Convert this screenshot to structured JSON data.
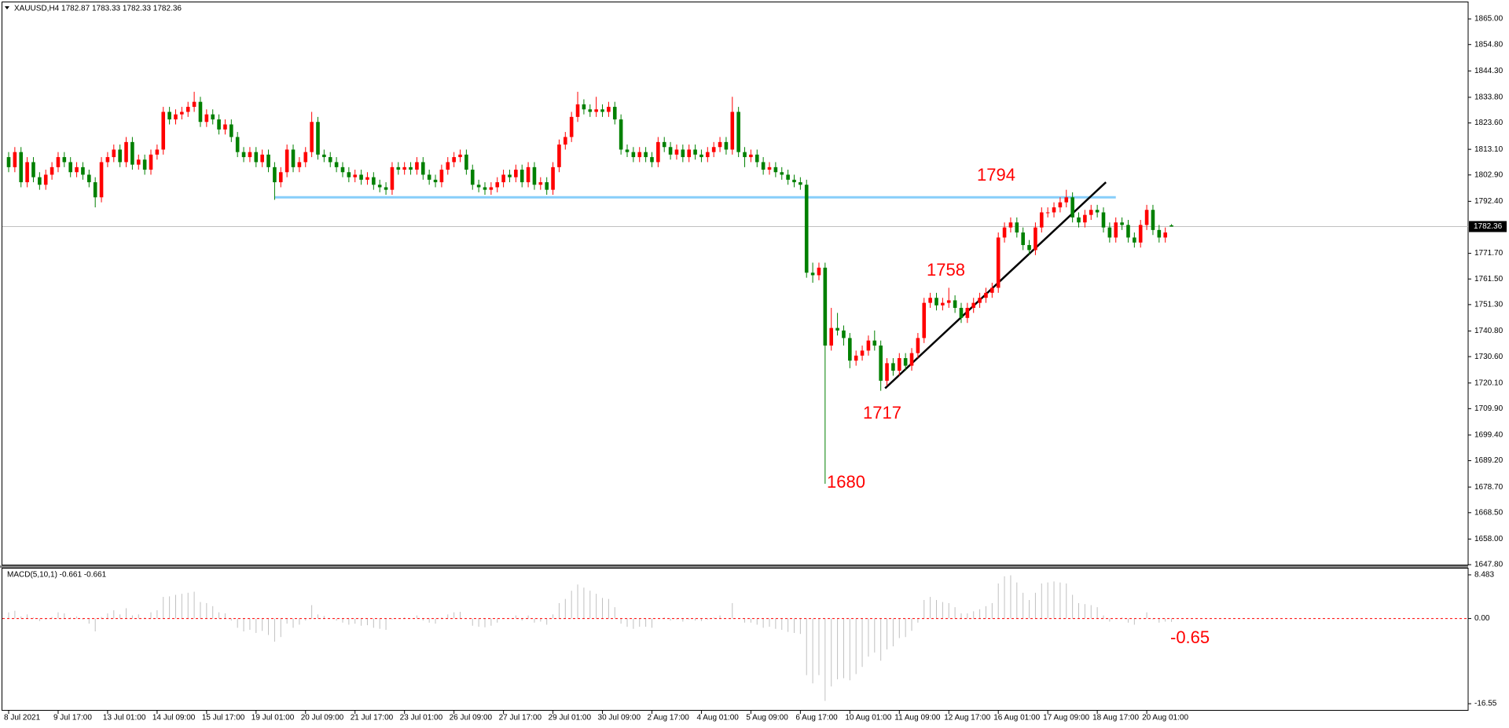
{
  "chart_data": [
    {
      "type": "candlestick",
      "title": "XAUUSD,H4 1782.87 1783.33 1782.33 1782.36",
      "categories": [
        "8 Jul 2021",
        null,
        null,
        null,
        null,
        null,
        null,
        null,
        "9 Jul 17:00",
        null,
        null,
        null,
        null,
        null,
        null,
        null,
        "13 Jul 01:00",
        null,
        null,
        null,
        null,
        null,
        null,
        null,
        "14 Jul 09:00",
        null,
        null,
        null,
        null,
        null,
        null,
        null,
        "15 Jul 17:00",
        null,
        null,
        null,
        null,
        null,
        null,
        null,
        "19 Jul 01:00",
        null,
        null,
        null,
        null,
        null,
        null,
        null,
        "20 Jul 09:00",
        null,
        null,
        null,
        null,
        null,
        null,
        null,
        "21 Jul 17:00",
        null,
        null,
        null,
        null,
        null,
        null,
        null,
        "23 Jul 01:00",
        null,
        null,
        null,
        null,
        null,
        null,
        null,
        "26 Jul 09:00",
        null,
        null,
        null,
        null,
        null,
        null,
        null,
        "27 Jul 17:00",
        null,
        null,
        null,
        null,
        null,
        null,
        null,
        "29 Jul 01:00",
        null,
        null,
        null,
        null,
        null,
        null,
        null,
        "30 Jul 09:00",
        null,
        null,
        null,
        null,
        null,
        null,
        null,
        "2 Aug 17:00",
        null,
        null,
        null,
        null,
        null,
        null,
        null,
        "4 Aug 01:00",
        null,
        null,
        null,
        null,
        null,
        null,
        null,
        "5 Aug 09:00",
        null,
        null,
        null,
        null,
        null,
        null,
        null,
        "6 Aug 17:00",
        null,
        null,
        null,
        null,
        null,
        null,
        null,
        "10 Aug 01:00",
        null,
        null,
        null,
        null,
        null,
        null,
        null,
        "11 Aug 09:00",
        null,
        null,
        null,
        null,
        null,
        null,
        null,
        "12 Aug 17:00",
        null,
        null,
        null,
        null,
        null,
        null,
        null,
        "16 Aug 01:00",
        null,
        null,
        null,
        null,
        null,
        null,
        null,
        "17 Aug 09:00",
        null,
        null,
        null,
        null,
        null,
        null,
        null,
        "18 Aug 17:00",
        null,
        null,
        null,
        null,
        null,
        null,
        null,
        "20 Aug 01:00",
        null,
        null,
        null,
        null
      ],
      "open": [
        1810,
        1806,
        1812,
        1800,
        1808,
        1802,
        1799,
        1803,
        1806,
        1810,
        1808,
        1804,
        1806,
        1803,
        1800,
        1794,
        1808,
        1810,
        1813,
        1808,
        1816,
        1807,
        1809,
        1805,
        1811,
        1813,
        1828,
        1825,
        1827,
        1828,
        1830,
        1832,
        1824,
        1827,
        1825,
        1821,
        1823,
        1818,
        1812,
        1810,
        1812,
        1808,
        1811,
        1806,
        1800,
        1804,
        1813,
        1806,
        1808,
        1812,
        1824,
        1811,
        1810,
        1808,
        1806,
        1804,
        1802,
        1803,
        1801,
        1802,
        1799,
        1798,
        1797,
        1806,
        1805,
        1806,
        1805,
        1808,
        1803,
        1801,
        1800,
        1805,
        1808,
        1810,
        1811,
        1805,
        1799,
        1798,
        1797,
        1798,
        1800,
        1803,
        1802,
        1805,
        1800,
        1806,
        1799,
        1800,
        1797,
        1806,
        1815,
        1818,
        1826,
        1831,
        1829,
        1828,
        1829,
        1828,
        1830,
        1825,
        1813,
        1812,
        1810,
        1812,
        1810,
        1808,
        1816,
        1814,
        1811,
        1813,
        1810,
        1813,
        1811,
        1810,
        1812,
        1814,
        1816,
        1813,
        1828,
        1812,
        1810,
        1811,
        1808,
        1805,
        1806,
        1804,
        1803,
        1801,
        1800,
        1799,
        1764,
        1763,
        1766,
        1735,
        1742,
        1741,
        1738,
        1729,
        1731,
        1733,
        1737,
        1735,
        1721,
        1728,
        1725,
        1730,
        1727,
        1732,
        1738,
        1752,
        1754,
        1751,
        1752,
        1753,
        1750,
        1746,
        1750,
        1752,
        1754,
        1756,
        1758,
        1778,
        1782,
        1784,
        1780,
        1775,
        1773,
        1782,
        1788,
        1788,
        1790,
        1792,
        1794,
        1786,
        1784,
        1787,
        1789,
        1788,
        1782,
        1778,
        1784,
        1783,
        1778,
        1776,
        1783,
        1789,
        1781,
        1778,
        1782.87
      ],
      "high": [
        1812,
        1814,
        1814,
        1810,
        1810,
        1804,
        1805,
        1808,
        1812,
        1812,
        1810,
        1808,
        1808,
        1805,
        1802,
        1810,
        1812,
        1815,
        1815,
        1818,
        1818,
        1811,
        1811,
        1813,
        1815,
        1830,
        1830,
        1829,
        1830,
        1832,
        1836,
        1834,
        1829,
        1829,
        1827,
        1825,
        1825,
        1820,
        1814,
        1814,
        1814,
        1813,
        1813,
        1808,
        1806,
        1815,
        1815,
        1810,
        1814,
        1828,
        1826,
        1813,
        1812,
        1810,
        1808,
        1806,
        1805,
        1805,
        1804,
        1804,
        1801,
        1800,
        1808,
        1808,
        1808,
        1808,
        1810,
        1810,
        1805,
        1803,
        1807,
        1810,
        1812,
        1813,
        1813,
        1807,
        1801,
        1800,
        1800,
        1802,
        1805,
        1805,
        1807,
        1807,
        1808,
        1808,
        1802,
        1802,
        1808,
        1817,
        1820,
        1828,
        1836,
        1833,
        1831,
        1834,
        1831,
        1832,
        1832,
        1827,
        1815,
        1814,
        1814,
        1814,
        1812,
        1818,
        1818,
        1816,
        1815,
        1815,
        1815,
        1815,
        1813,
        1814,
        1816,
        1818,
        1818,
        1834,
        1830,
        1814,
        1813,
        1813,
        1810,
        1808,
        1808,
        1806,
        1805,
        1803,
        1802,
        1801,
        1768,
        1768,
        1768,
        1750,
        1748,
        1743,
        1740,
        1733,
        1735,
        1739,
        1741,
        1737,
        1730,
        1730,
        1732,
        1732,
        1734,
        1740,
        1754,
        1756,
        1756,
        1754,
        1758,
        1755,
        1752,
        1752,
        1754,
        1756,
        1758,
        1760,
        1780,
        1784,
        1786,
        1786,
        1782,
        1777,
        1784,
        1790,
        1790,
        1792,
        1794,
        1797,
        1796,
        1788,
        1789,
        1791,
        1791,
        1790,
        1784,
        1786,
        1786,
        1785,
        1780,
        1785,
        1791,
        1791,
        1783,
        1782,
        1783.33
      ],
      "low": [
        1804,
        1804,
        1798,
        1798,
        1800,
        1797,
        1797,
        1801,
        1804,
        1806,
        1802,
        1802,
        1801,
        1798,
        1790,
        1792,
        1806,
        1808,
        1806,
        1806,
        1805,
        1805,
        1803,
        1803,
        1809,
        1811,
        1823,
        1823,
        1825,
        1826,
        1828,
        1822,
        1822,
        1823,
        1819,
        1819,
        1816,
        1810,
        1808,
        1808,
        1806,
        1806,
        1804,
        1793,
        1798,
        1802,
        1804,
        1804,
        1806,
        1810,
        1809,
        1808,
        1806,
        1804,
        1802,
        1800,
        1800,
        1799,
        1799,
        1797,
        1796,
        1795,
        1795,
        1803,
        1803,
        1803,
        1803,
        1801,
        1799,
        1798,
        1798,
        1803,
        1806,
        1808,
        1803,
        1797,
        1796,
        1795,
        1795,
        1796,
        1798,
        1800,
        1800,
        1798,
        1798,
        1797,
        1797,
        1795,
        1795,
        1804,
        1813,
        1816,
        1824,
        1827,
        1826,
        1826,
        1826,
        1826,
        1823,
        1811,
        1810,
        1808,
        1808,
        1808,
        1806,
        1806,
        1812,
        1809,
        1809,
        1808,
        1808,
        1809,
        1808,
        1808,
        1810,
        1812,
        1811,
        1811,
        1810,
        1806,
        1808,
        1806,
        1803,
        1803,
        1802,
        1801,
        1799,
        1798,
        1797,
        1762,
        1760,
        1761,
        1680,
        1733,
        1739,
        1735,
        1726,
        1727,
        1729,
        1731,
        1733,
        1717,
        1719,
        1723,
        1723,
        1725,
        1725,
        1730,
        1736,
        1750,
        1749,
        1749,
        1750,
        1748,
        1744,
        1744,
        1748,
        1750,
        1752,
        1754,
        1756,
        1776,
        1780,
        1778,
        1773,
        1771,
        1771,
        1780,
        1786,
        1786,
        1788,
        1790,
        1784,
        1782,
        1782,
        1785,
        1786,
        1780,
        1776,
        1776,
        1781,
        1776,
        1774,
        1774,
        1781,
        1779,
        1776,
        1776,
        1782.33
      ],
      "close": [
        1806,
        1812,
        1800,
        1808,
        1802,
        1799,
        1803,
        1806,
        1810,
        1808,
        1804,
        1806,
        1803,
        1800,
        1794,
        1808,
        1810,
        1813,
        1808,
        1816,
        1807,
        1809,
        1805,
        1811,
        1813,
        1828,
        1825,
        1827,
        1828,
        1830,
        1832,
        1824,
        1827,
        1825,
        1821,
        1823,
        1818,
        1812,
        1810,
        1812,
        1808,
        1811,
        1806,
        1800,
        1804,
        1813,
        1806,
        1808,
        1812,
        1824,
        1811,
        1810,
        1808,
        1806,
        1804,
        1802,
        1803,
        1801,
        1802,
        1799,
        1798,
        1797,
        1806,
        1805,
        1806,
        1805,
        1808,
        1803,
        1801,
        1800,
        1805,
        1808,
        1810,
        1811,
        1805,
        1799,
        1798,
        1797,
        1798,
        1800,
        1803,
        1802,
        1805,
        1800,
        1806,
        1799,
        1800,
        1797,
        1806,
        1815,
        1818,
        1826,
        1831,
        1829,
        1828,
        1829,
        1828,
        1830,
        1825,
        1813,
        1812,
        1810,
        1812,
        1810,
        1808,
        1816,
        1814,
        1811,
        1813,
        1810,
        1813,
        1811,
        1810,
        1812,
        1814,
        1816,
        1813,
        1828,
        1812,
        1810,
        1811,
        1808,
        1805,
        1806,
        1804,
        1803,
        1801,
        1800,
        1799,
        1764,
        1763,
        1766,
        1735,
        1742,
        1741,
        1738,
        1729,
        1731,
        1733,
        1737,
        1735,
        1721,
        1728,
        1725,
        1730,
        1727,
        1732,
        1738,
        1752,
        1754,
        1751,
        1752,
        1753,
        1750,
        1746,
        1750,
        1752,
        1754,
        1756,
        1758,
        1778,
        1782,
        1784,
        1780,
        1775,
        1773,
        1782,
        1788,
        1788,
        1790,
        1792,
        1794,
        1786,
        1784,
        1787,
        1789,
        1788,
        1782,
        1778,
        1784,
        1783,
        1778,
        1776,
        1783,
        1789,
        1781,
        1778,
        1780,
        1782.36
      ],
      "up_color": "#ff0000",
      "down_color": "#008000",
      "ylim": [
        1647.5,
        1871.9
      ],
      "yticks": [
        {
          "value": 1865,
          "label": "1865.00"
        },
        {
          "value": 1854.8,
          "label": "1854.80"
        },
        {
          "value": 1844.3,
          "label": "1844.30"
        },
        {
          "value": 1833.8,
          "label": "1833.80"
        },
        {
          "value": 1823.6,
          "label": "1823.60"
        },
        {
          "value": 1813.1,
          "label": "1813.10"
        },
        {
          "value": 1802.9,
          "label": "1802.90"
        },
        {
          "value": 1792.4,
          "label": "1792.40"
        },
        {
          "value": 1771.7,
          "label": "1771.70"
        },
        {
          "value": 1761.5,
          "label": "1761.50"
        },
        {
          "value": 1751.3,
          "label": "1751.30"
        },
        {
          "value": 1740.8,
          "label": "1740.80"
        },
        {
          "value": 1730.6,
          "label": "1730.60"
        },
        {
          "value": 1720.1,
          "label": "1720.10"
        },
        {
          "value": 1709.9,
          "label": "1709.90"
        },
        {
          "value": 1699.4,
          "label": "1699.40"
        },
        {
          "value": 1689.2,
          "label": "1689.20"
        },
        {
          "value": 1678.7,
          "label": "1678.70"
        },
        {
          "value": 1668.5,
          "label": "1668.50"
        },
        {
          "value": 1658,
          "label": "1658.00"
        },
        {
          "value": 1647.8,
          "label": "1647.80"
        }
      ],
      "current_price": 1782.36,
      "lines": [
        {
          "color": "#87cefa",
          "x": [
            43,
            179
          ],
          "y": [
            1794,
            1794
          ]
        },
        {
          "color": "#000000",
          "x": [
            141.7,
            177.4
          ],
          "y": [
            1718,
            1800
          ]
        }
      ],
      "annotations": [
        "1794",
        "1758",
        "1717",
        "1680"
      ],
      "annotation_color": "#ff0000"
    },
    {
      "type": "bar",
      "title": "MACD(5,10,1) -0.661 -0.661",
      "values": [
        1.2,
        1.5,
        0.4,
        0.8,
        0.2,
        -0.5,
        -0.2,
        0.3,
        1.2,
        1.0,
        0.2,
        0.4,
        -0.2,
        -1.0,
        -2.5,
        0.3,
        1.0,
        1.6,
        0.8,
        2.0,
        0.6,
        0.8,
        0.2,
        1.2,
        1.6,
        4.2,
        4.3,
        4.6,
        4.8,
        5.0,
        5.2,
        3.2,
        3.0,
        2.4,
        1.2,
        1.0,
        -0.4,
        -1.8,
        -2.5,
        -2.2,
        -2.8,
        -2.4,
        -3.2,
        -4.5,
        -3.6,
        -1.0,
        -1.8,
        -1.2,
        -0.4,
        2.6,
        0.8,
        0.5,
        0.0,
        -0.4,
        -0.8,
        -1.2,
        -1.0,
        -1.4,
        -1.3,
        -1.8,
        -2.0,
        -2.2,
        -0.2,
        0.0,
        0.2,
        0.0,
        0.6,
        -0.4,
        -0.8,
        -1.0,
        0.2,
        0.8,
        1.2,
        1.3,
        0.0,
        -1.4,
        -1.6,
        -1.7,
        -1.4,
        -0.8,
        0.0,
        0.0,
        0.6,
        -0.4,
        0.6,
        -0.8,
        -0.6,
        -1.2,
        0.8,
        3.0,
        3.8,
        5.4,
        6.6,
        6.0,
        5.4,
        4.8,
        4.0,
        3.8,
        2.2,
        -1.0,
        -1.6,
        -2.0,
        -1.6,
        -1.6,
        -1.8,
        0.0,
        0.2,
        -0.4,
        -0.2,
        -0.6,
        -0.2,
        -0.4,
        -0.5,
        -0.2,
        0.2,
        0.6,
        0.0,
        3.0,
        0.0,
        -0.8,
        -0.8,
        -1.2,
        -1.8,
        -1.6,
        -2.0,
        -2.2,
        -2.6,
        -2.8,
        -3.0,
        -11.0,
        -12.6,
        -11.0,
        -16.0,
        -13.2,
        -11.8,
        -11.6,
        -12.0,
        -10.8,
        -9.4,
        -7.4,
        -6.6,
        -8.2,
        -6.0,
        -5.4,
        -3.8,
        -3.6,
        -2.4,
        -0.8,
        3.6,
        4.2,
        3.6,
        3.2,
        3.0,
        2.2,
        1.0,
        1.0,
        1.4,
        1.8,
        2.4,
        3.0,
        6.8,
        8.2,
        8.4,
        7.0,
        5.0,
        3.6,
        5.0,
        6.8,
        7.0,
        7.2,
        7.0,
        6.8,
        4.6,
        3.0,
        2.8,
        2.6,
        2.2,
        0.6,
        -0.6,
        0.0,
        0.2,
        -0.8,
        -1.2,
        0.0,
        1.2,
        -0.2,
        -0.8,
        -0.6,
        -0.661
      ],
      "color": "#c0c0c0",
      "zero_line_color": "#ff0000",
      "ylim": [
        -17.76,
        9.7
      ],
      "yticks": [
        8.483,
        {
          "value": 0,
          "label": "0.00"
        },
        -16.55
      ],
      "annotations": [
        "-0.65"
      ],
      "annotation_color": "#ff0000"
    }
  ]
}
